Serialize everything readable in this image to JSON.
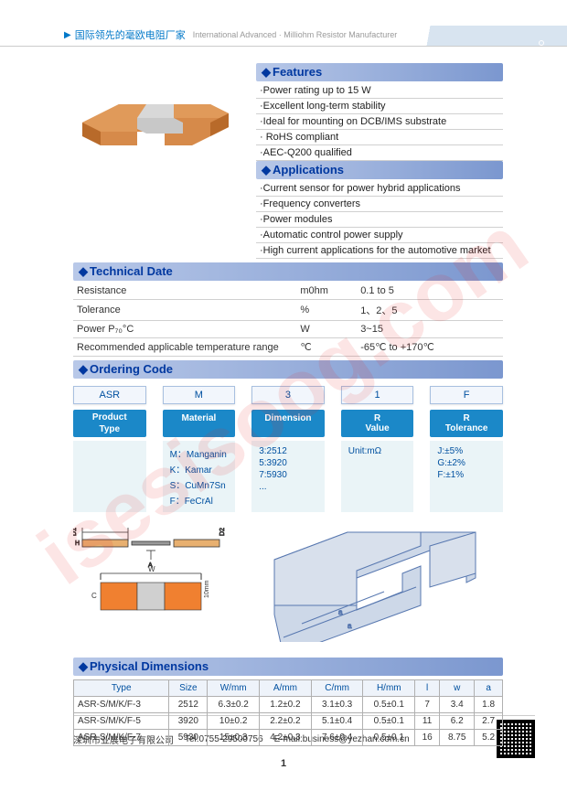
{
  "header": {
    "cn": "国际领先的毫欧电阻厂家",
    "en": "International Advanced · Milliohm Resistor Manufacturer"
  },
  "watermark": "isesisoog.com",
  "sections": {
    "features": "Features",
    "applications": "Applications",
    "tech": "Technical Date",
    "ordering": "Ordering Code",
    "phys": "Physical Dimensions"
  },
  "features": [
    "·Power rating up to 15 W",
    "·Excellent long-term stability",
    "·Ideal for mounting on DCB/IMS substrate",
    "· RoHS compliant",
    "·AEC-Q200 qualified"
  ],
  "applications": [
    "·Current sensor for power hybrid applications",
    "·Frequency converters",
    "·Power modules",
    "·Automatic control power supply",
    "·High current applications for the automotive market"
  ],
  "tech": [
    {
      "p": "Resistance",
      "u": "m0hm",
      "v": "0.1 to 5"
    },
    {
      "p": "Tolerance",
      "u": "%",
      "v": "1、2、5"
    },
    {
      "p": "Power P₇₀°C",
      "u": "W",
      "v": "3~15"
    },
    {
      "p": "Recommended applicable temperature range",
      "u": "℃",
      "v": "-65℃ to +170℃"
    }
  ],
  "order_codes": [
    "ASR",
    "M",
    "3",
    "1",
    "F"
  ],
  "order_heads": [
    "Product Type",
    "Material",
    "Dimension",
    "R Value",
    "R Tolerance"
  ],
  "order_bodies": [
    [],
    [
      "M：Manganin",
      "K：Kamar",
      "S：CuMn7Sn",
      "F：FeCrAl"
    ],
    [
      "3:2512",
      "5:3920",
      "7:5930",
      "..."
    ],
    [
      "Unit:mΩ"
    ],
    [
      "J:±5%",
      "G:±2%",
      "F:±1%"
    ]
  ],
  "phys_headers": [
    "Type",
    "Size",
    "W/mm",
    "A/mm",
    "C/mm",
    "H/mm",
    "l",
    "w",
    "a"
  ],
  "phys_rows": [
    [
      "ASR-S/M/K/F-3",
      "2512",
      "6.3±0.2",
      "1.2±0.2",
      "3.1±0.3",
      "0.5±0.1",
      "7",
      "3.4",
      "1.8"
    ],
    [
      "ASR-S/M/K/F-5",
      "3920",
      "10±0.2",
      "2.2±0.2",
      "5.1±0.4",
      "0.5±0.1",
      "11",
      "6.2",
      "2.7"
    ],
    [
      "ASR-S/M/K/F-7",
      "5930",
      "15±0.3",
      "4.2±0.3",
      "7.6±0.4",
      "0.5±0.1",
      "16",
      "8.75",
      "5.2"
    ]
  ],
  "footer": {
    "company": "深圳市业展电子有限公司",
    "tel": "Tel:0755-29500756",
    "email": "E-mail:business@yezhan.com.cn"
  },
  "pagenum": "1",
  "colors": {
    "accent": "#0078c8",
    "section_bg_a": "#b8c8e8",
    "section_bg_b": "#7b97cf",
    "order_head_bg": "#1b88c8",
    "order_body_bg": "#eaf4f7",
    "copper": "#d68a4a",
    "copper_dark": "#b86a2a",
    "metal": "#b8b8b8"
  }
}
